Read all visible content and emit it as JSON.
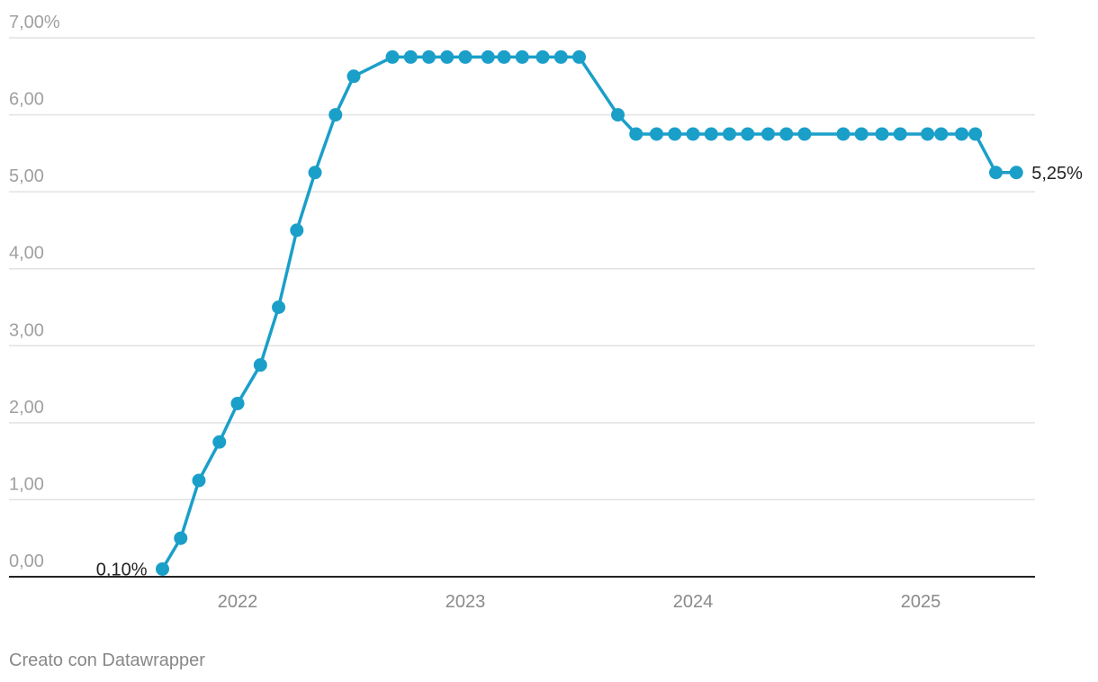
{
  "chart_data": {
    "type": "line",
    "x_unit": "year",
    "xlim": [
      2021.0,
      2025.5
    ],
    "ylim": [
      0,
      7
    ],
    "y_ticks": [
      0,
      1,
      2,
      3,
      4,
      5,
      6,
      7
    ],
    "y_tick_labels": [
      "0,00",
      "1,00",
      "2,00",
      "3,00",
      "4,00",
      "5,00",
      "6,00",
      "7,00%"
    ],
    "x_ticks": [
      2022,
      2023,
      2024,
      2025
    ],
    "x_tick_labels": [
      "2022",
      "2023",
      "2024",
      "2025"
    ],
    "grid": true,
    "line_color": "#1a9fc9",
    "series": [
      {
        "x": [
          2021.67,
          2021.75,
          2021.83,
          2021.92,
          2022.0,
          2022.1,
          2022.18,
          2022.26,
          2022.34,
          2022.43,
          2022.51,
          2022.68,
          2022.76,
          2022.84,
          2022.92,
          2023.0,
          2023.1,
          2023.17,
          2023.25,
          2023.34,
          2023.42,
          2023.5,
          2023.67,
          2023.75,
          2023.84,
          2023.92,
          2024.0,
          2024.08,
          2024.16,
          2024.24,
          2024.33,
          2024.41,
          2024.49,
          2024.66,
          2024.74,
          2024.83,
          2024.91,
          2025.03,
          2025.09,
          2025.18,
          2025.24,
          2025.33,
          2025.42
        ],
        "values": [
          0.1,
          0.5,
          1.25,
          1.75,
          2.25,
          2.75,
          3.5,
          4.5,
          5.25,
          6.0,
          6.5,
          6.75,
          6.75,
          6.75,
          6.75,
          6.75,
          6.75,
          6.75,
          6.75,
          6.75,
          6.75,
          6.75,
          6.0,
          5.75,
          5.75,
          5.75,
          5.75,
          5.75,
          5.75,
          5.75,
          5.75,
          5.75,
          5.75,
          5.75,
          5.75,
          5.75,
          5.75,
          5.75,
          5.75,
          5.75,
          5.75,
          5.25,
          5.25
        ]
      }
    ],
    "annotations": {
      "first_label": "0,10%",
      "last_label": "5,25%"
    }
  },
  "footer": {
    "credit": "Creato con Datawrapper"
  }
}
